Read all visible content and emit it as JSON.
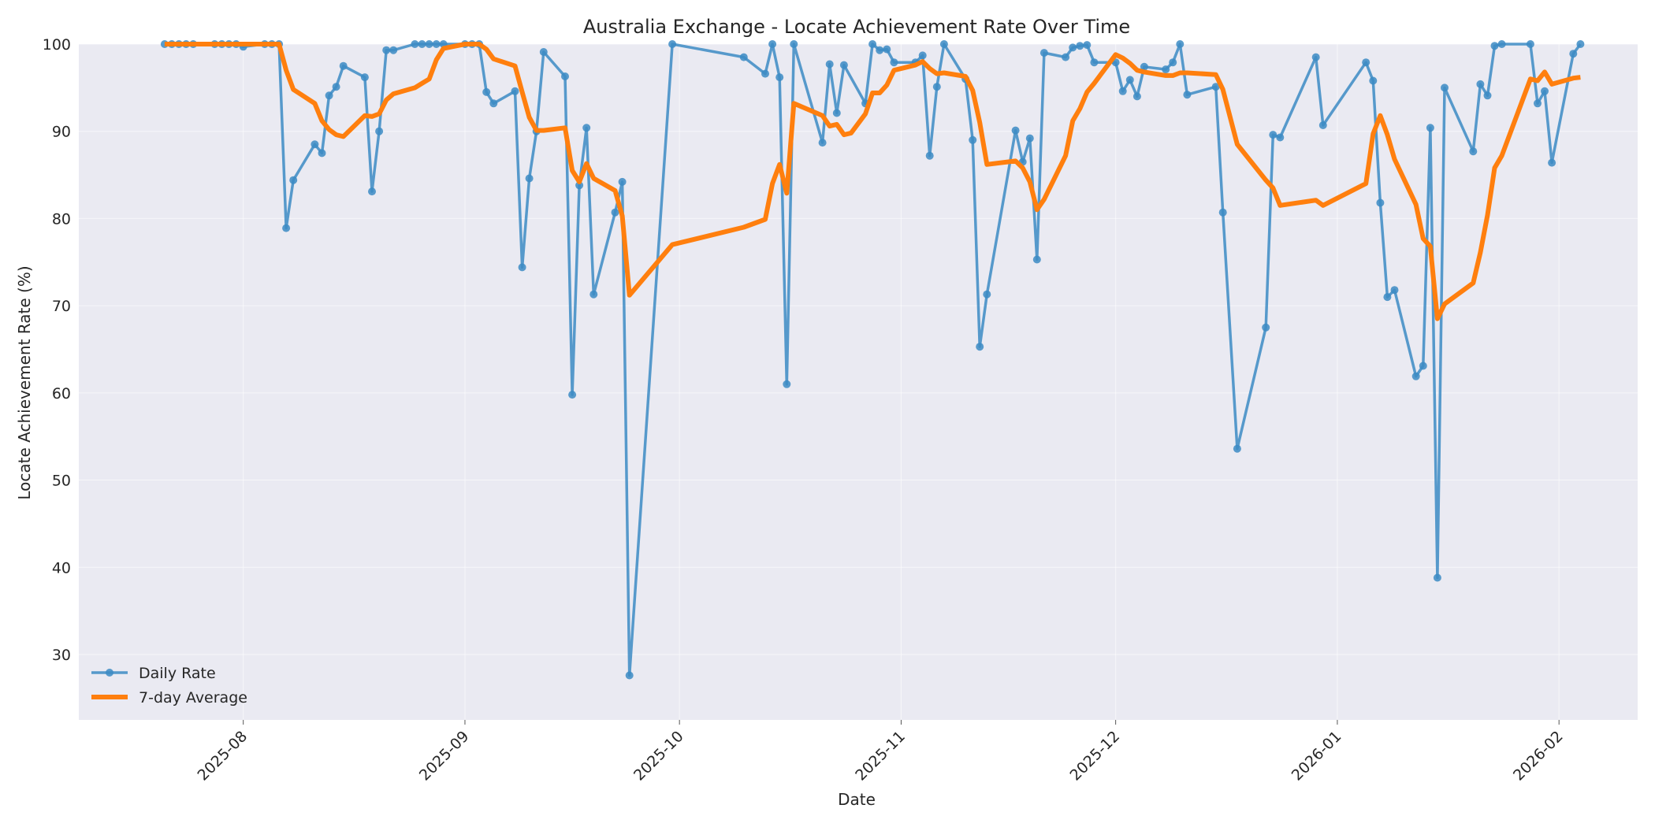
{
  "chart_data": {
    "type": "line",
    "title": "Australia Exchange - Locate Achievement Rate Over Time",
    "xlabel": "Date",
    "ylabel": "Locate Achievement Rate (%)",
    "ylim": [
      22.5,
      100
    ],
    "xlim": [
      "2025-07-09",
      "2026-02-12"
    ],
    "y_ticks": [
      30,
      40,
      50,
      60,
      70,
      80,
      90,
      100
    ],
    "x_ticks": [
      "2025-08",
      "2025-09",
      "2025-10",
      "2025-11",
      "2025-12",
      "2026-01",
      "2026-02"
    ],
    "grid": true,
    "legend_position": "lower-left",
    "colors": {
      "daily": "#3c8bc4",
      "avg": "#ff7f0e",
      "plot_bg": "#eaeaf2"
    },
    "series": [
      {
        "name": "Daily Rate",
        "marker": "circle",
        "points": [
          [
            "2025-07-21",
            100
          ],
          [
            "2025-07-22",
            100
          ],
          [
            "2025-07-23",
            100
          ],
          [
            "2025-07-24",
            100
          ],
          [
            "2025-07-25",
            100
          ],
          [
            "2025-07-28",
            100
          ],
          [
            "2025-07-29",
            100
          ],
          [
            "2025-07-30",
            100
          ],
          [
            "2025-07-31",
            100
          ],
          [
            "2025-08-01",
            99.7
          ],
          [
            "2025-08-04",
            100
          ],
          [
            "2025-08-05",
            100
          ],
          [
            "2025-08-06",
            100
          ],
          [
            "2025-08-07",
            78.9
          ],
          [
            "2025-08-08",
            84.4
          ],
          [
            "2025-08-11",
            88.5
          ],
          [
            "2025-08-12",
            87.5
          ],
          [
            "2025-08-13",
            94.1
          ],
          [
            "2025-08-14",
            95.1
          ],
          [
            "2025-08-15",
            97.5
          ],
          [
            "2025-08-18",
            96.2
          ],
          [
            "2025-08-19",
            83.1
          ],
          [
            "2025-08-20",
            90
          ],
          [
            "2025-08-21",
            99.3
          ],
          [
            "2025-08-22",
            99.3
          ],
          [
            "2025-08-25",
            100
          ],
          [
            "2025-08-26",
            100
          ],
          [
            "2025-08-27",
            100
          ],
          [
            "2025-08-28",
            100
          ],
          [
            "2025-08-29",
            100
          ],
          [
            "2025-09-01",
            100
          ],
          [
            "2025-09-02",
            100
          ],
          [
            "2025-09-03",
            100
          ],
          [
            "2025-09-04",
            94.5
          ],
          [
            "2025-09-05",
            93.2
          ],
          [
            "2025-09-08",
            94.6
          ],
          [
            "2025-09-09",
            74.4
          ],
          [
            "2025-09-10",
            84.6
          ],
          [
            "2025-09-11",
            90
          ],
          [
            "2025-09-12",
            99.1
          ],
          [
            "2025-09-15",
            96.3
          ],
          [
            "2025-09-16",
            59.8
          ],
          [
            "2025-09-17",
            83.8
          ],
          [
            "2025-09-18",
            90.4
          ],
          [
            "2025-09-19",
            71.3
          ],
          [
            "2025-09-22",
            80.7
          ],
          [
            "2025-09-23",
            84.2
          ],
          [
            "2025-09-24",
            27.6
          ],
          [
            "2025-09-30",
            100
          ],
          [
            "2025-10-10",
            98.5
          ],
          [
            "2025-10-13",
            96.6
          ],
          [
            "2025-10-14",
            100
          ],
          [
            "2025-10-15",
            96.2
          ],
          [
            "2025-10-16",
            61
          ],
          [
            "2025-10-17",
            100
          ],
          [
            "2025-10-21",
            88.7
          ],
          [
            "2025-10-22",
            97.7
          ],
          [
            "2025-10-23",
            92.1
          ],
          [
            "2025-10-24",
            97.6
          ],
          [
            "2025-10-27",
            93.2
          ],
          [
            "2025-10-28",
            100
          ],
          [
            "2025-10-29",
            99.3
          ],
          [
            "2025-10-30",
            99.4
          ],
          [
            "2025-10-31",
            97.9
          ],
          [
            "2025-11-03",
            97.9
          ],
          [
            "2025-11-04",
            98.7
          ],
          [
            "2025-11-05",
            87.2
          ],
          [
            "2025-11-06",
            95.1
          ],
          [
            "2025-11-07",
            100
          ],
          [
            "2025-11-10",
            96
          ],
          [
            "2025-11-11",
            89
          ],
          [
            "2025-11-12",
            65.3
          ],
          [
            "2025-11-13",
            71.3
          ],
          [
            "2025-11-17",
            90.1
          ],
          [
            "2025-11-18",
            86.5
          ],
          [
            "2025-11-19",
            89.2
          ],
          [
            "2025-11-20",
            75.3
          ],
          [
            "2025-11-21",
            99
          ],
          [
            "2025-11-24",
            98.5
          ],
          [
            "2025-11-25",
            99.6
          ],
          [
            "2025-11-26",
            99.8
          ],
          [
            "2025-11-27",
            99.9
          ],
          [
            "2025-11-28",
            97.9
          ],
          [
            "2025-12-01",
            97.9
          ],
          [
            "2025-12-02",
            94.6
          ],
          [
            "2025-12-03",
            95.9
          ],
          [
            "2025-12-04",
            94
          ],
          [
            "2025-12-05",
            97.4
          ],
          [
            "2025-12-08",
            97.1
          ],
          [
            "2025-12-09",
            97.9
          ],
          [
            "2025-12-10",
            100
          ],
          [
            "2025-12-11",
            94.2
          ],
          [
            "2025-12-15",
            95.1
          ],
          [
            "2025-12-16",
            80.7
          ],
          [
            "2025-12-18",
            53.6
          ],
          [
            "2025-12-22",
            67.5
          ],
          [
            "2025-12-23",
            89.6
          ],
          [
            "2025-12-24",
            89.3
          ],
          [
            "2025-12-29",
            98.5
          ],
          [
            "2025-12-30",
            90.7
          ],
          [
            "2026-01-05",
            97.9
          ],
          [
            "2026-01-06",
            95.8
          ],
          [
            "2026-01-07",
            81.8
          ],
          [
            "2026-01-08",
            71
          ],
          [
            "2026-01-09",
            71.8
          ],
          [
            "2026-01-12",
            61.9
          ],
          [
            "2026-01-13",
            63.1
          ],
          [
            "2026-01-14",
            90.4
          ],
          [
            "2026-01-15",
            38.8
          ],
          [
            "2026-01-16",
            95
          ],
          [
            "2026-01-20",
            87.7
          ],
          [
            "2026-01-21",
            95.4
          ],
          [
            "2026-01-22",
            94.1
          ],
          [
            "2026-01-23",
            99.8
          ],
          [
            "2026-01-24",
            100
          ],
          [
            "2026-01-28",
            100
          ],
          [
            "2026-01-29",
            93.2
          ],
          [
            "2026-01-30",
            94.6
          ],
          [
            "2026-01-31",
            86.4
          ],
          [
            "2026-02-03",
            98.9
          ],
          [
            "2026-02-04",
            100
          ]
        ]
      },
      {
        "name": "7-day Average",
        "points": [
          [
            "2025-07-21",
            100
          ],
          [
            "2025-07-25",
            100
          ],
          [
            "2025-07-31",
            100
          ],
          [
            "2025-08-01",
            100
          ],
          [
            "2025-08-06",
            100
          ],
          [
            "2025-08-07",
            97
          ],
          [
            "2025-08-08",
            94.8
          ],
          [
            "2025-08-11",
            93.2
          ],
          [
            "2025-08-12",
            91.2
          ],
          [
            "2025-08-13",
            90.2
          ],
          [
            "2025-08-14",
            89.6
          ],
          [
            "2025-08-15",
            89.4
          ],
          [
            "2025-08-18",
            91.8
          ],
          [
            "2025-08-19",
            91.7
          ],
          [
            "2025-08-20",
            92
          ],
          [
            "2025-08-21",
            93.6
          ],
          [
            "2025-08-22",
            94.3
          ],
          [
            "2025-08-25",
            95
          ],
          [
            "2025-08-26",
            95.5
          ],
          [
            "2025-08-27",
            96
          ],
          [
            "2025-08-28",
            98.2
          ],
          [
            "2025-08-29",
            99.5
          ],
          [
            "2025-09-01",
            100
          ],
          [
            "2025-09-02",
            100
          ],
          [
            "2025-09-03",
            100
          ],
          [
            "2025-09-04",
            99.4
          ],
          [
            "2025-09-05",
            98.3
          ],
          [
            "2025-09-08",
            97.5
          ],
          [
            "2025-09-09",
            94.5
          ],
          [
            "2025-09-10",
            91.6
          ],
          [
            "2025-09-11",
            90.1
          ],
          [
            "2025-09-12",
            90.1
          ],
          [
            "2025-09-15",
            90.4
          ],
          [
            "2025-09-16",
            85.5
          ],
          [
            "2025-09-17",
            84.2
          ],
          [
            "2025-09-18",
            86.3
          ],
          [
            "2025-09-19",
            84.6
          ],
          [
            "2025-09-22",
            83.2
          ],
          [
            "2025-09-23",
            80.3
          ],
          [
            "2025-09-24",
            71.2
          ],
          [
            "2025-09-30",
            77
          ],
          [
            "2025-10-10",
            79
          ],
          [
            "2025-10-13",
            79.9
          ],
          [
            "2025-10-14",
            84
          ],
          [
            "2025-10-15",
            86.2
          ],
          [
            "2025-10-16",
            82.9
          ],
          [
            "2025-10-17",
            93.2
          ],
          [
            "2025-10-21",
            91.8
          ],
          [
            "2025-10-22",
            90.6
          ],
          [
            "2025-10-23",
            90.8
          ],
          [
            "2025-10-24",
            89.6
          ],
          [
            "2025-10-25",
            89.8
          ],
          [
            "2025-10-27",
            92
          ],
          [
            "2025-10-28",
            94.4
          ],
          [
            "2025-10-29",
            94.4
          ],
          [
            "2025-10-30",
            95.3
          ],
          [
            "2025-10-31",
            97
          ],
          [
            "2025-11-03",
            97.6
          ],
          [
            "2025-11-04",
            98
          ],
          [
            "2025-11-05",
            97.2
          ],
          [
            "2025-11-06",
            96.6
          ],
          [
            "2025-11-07",
            96.7
          ],
          [
            "2025-11-10",
            96.3
          ],
          [
            "2025-11-11",
            94.7
          ],
          [
            "2025-11-12",
            91
          ],
          [
            "2025-11-13",
            86.2
          ],
          [
            "2025-11-17",
            86.6
          ],
          [
            "2025-11-18",
            85.8
          ],
          [
            "2025-11-19",
            84.2
          ],
          [
            "2025-11-20",
            81
          ],
          [
            "2025-11-21",
            82.2
          ],
          [
            "2025-11-24",
            87.2
          ],
          [
            "2025-11-25",
            91.2
          ],
          [
            "2025-11-26",
            92.6
          ],
          [
            "2025-11-27",
            94.5
          ],
          [
            "2025-11-28",
            95.5
          ],
          [
            "2025-12-01",
            98.8
          ],
          [
            "2025-12-02",
            98.4
          ],
          [
            "2025-12-03",
            97.8
          ],
          [
            "2025-12-04",
            97
          ],
          [
            "2025-12-05",
            96.8
          ],
          [
            "2025-12-08",
            96.4
          ],
          [
            "2025-12-09",
            96.4
          ],
          [
            "2025-12-10",
            96.7
          ],
          [
            "2025-12-11",
            96.7
          ],
          [
            "2025-12-15",
            96.5
          ],
          [
            "2025-12-16",
            94.8
          ],
          [
            "2025-12-18",
            88.5
          ],
          [
            "2025-12-22",
            84.4
          ],
          [
            "2025-12-23",
            83.5
          ],
          [
            "2025-12-24",
            81.5
          ],
          [
            "2025-12-29",
            82.1
          ],
          [
            "2025-12-30",
            81.5
          ],
          [
            "2026-01-05",
            84
          ],
          [
            "2026-01-06",
            89.7
          ],
          [
            "2026-01-07",
            91.8
          ],
          [
            "2026-01-08",
            89.6
          ],
          [
            "2026-01-09",
            86.8
          ],
          [
            "2026-01-12",
            81.6
          ],
          [
            "2026-01-13",
            77.7
          ],
          [
            "2026-01-14",
            76.8
          ],
          [
            "2026-01-15",
            68.5
          ],
          [
            "2026-01-16",
            70.2
          ],
          [
            "2026-01-20",
            72.6
          ],
          [
            "2026-01-21",
            76.1
          ],
          [
            "2026-01-22",
            80.4
          ],
          [
            "2026-01-23",
            85.8
          ],
          [
            "2026-01-24",
            87.2
          ],
          [
            "2026-01-28",
            96
          ],
          [
            "2026-01-29",
            95.8
          ],
          [
            "2026-01-30",
            96.8
          ],
          [
            "2026-01-31",
            95.4
          ],
          [
            "2026-02-03",
            96.1
          ],
          [
            "2026-02-04",
            96.2
          ]
        ]
      }
    ]
  }
}
